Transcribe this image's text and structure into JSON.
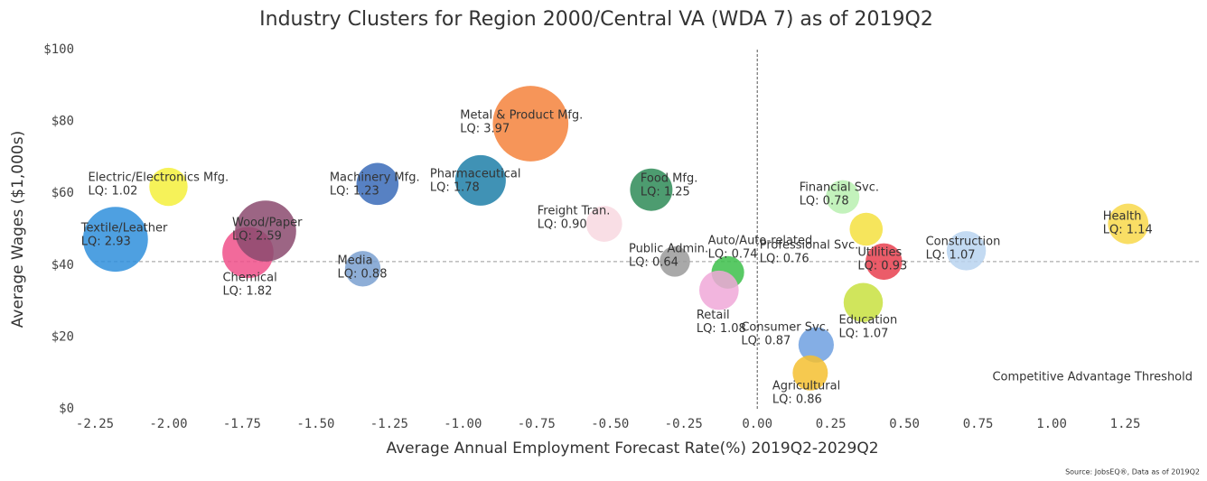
{
  "chart_data": {
    "type": "bubble",
    "title": "Industry Clusters for Region 2000/Central VA (WDA 7) as of 2019Q2",
    "x_label": "Average Annual Employment Forecast Rate(%) 2019Q2-2029Q2",
    "y_label": "Average Wages ($1,000s)",
    "annotation": "Competitive Advantage Threshold",
    "source": "Source: JobsEQ®, Data as of 2019Q2",
    "categories": [
      "Textile/Leather",
      "Electric/Electronics Mfg.",
      "Chemical",
      "Wood/Paper",
      "Media",
      "Machinery Mfg.",
      "Pharmaceutical",
      "Metal & Product Mfg.",
      "Freight Tran.",
      "Food Mfg.",
      "Public Admin.",
      "Auto/Auto-related",
      "Retail",
      "Professional Svc.",
      "Financial Svc.",
      "Utilities",
      "Construction",
      "Health",
      "Education",
      "Consumer Svc.",
      "Agricultural"
    ],
    "x": [
      -2.18,
      -2.0,
      -1.73,
      -1.67,
      -1.34,
      -1.29,
      -0.94,
      -0.77,
      -0.52,
      -0.36,
      -0.28,
      -0.1,
      -0.13,
      0.37,
      0.29,
      0.43,
      0.71,
      1.26,
      0.36,
      0.2,
      0.18
    ],
    "values": [
      47.2,
      61.8,
      43.5,
      49.5,
      39,
      62.6,
      63.6,
      79.4,
      51.5,
      61,
      41,
      38,
      33,
      50,
      59,
      41,
      44,
      51.5,
      29.6,
      17.8,
      10
    ],
    "sizes": [
      2.93,
      1.02,
      1.82,
      2.59,
      0.88,
      1.23,
      1.78,
      3.97,
      0.9,
      1.25,
      0.64,
      0.74,
      1.08,
      0.76,
      0.78,
      0.93,
      1.07,
      1.14,
      1.07,
      0.87,
      0.86
    ],
    "value_labels": [
      "LQ: 2.93",
      "LQ: 1.02",
      "LQ: 1.82",
      "LQ: 2.59",
      "LQ: 0.88",
      "LQ: 1.23",
      "LQ: 1.78",
      "LQ: 3.97",
      "LQ: 0.90",
      "LQ: 1.25",
      "LQ: 0.64",
      "LQ: 0.74",
      "LQ: 1.08",
      "LQ: 0.76",
      "LQ: 0.78",
      "LQ: 0.93",
      "LQ: 1.07",
      "LQ: 1.14",
      "LQ: 1.07",
      "LQ: 0.87",
      "LQ: 0.86"
    ],
    "colors": [
      "#2f8fdc",
      "#f5f03c",
      "#f0508a",
      "#8b4a6e",
      "#7aa0d0",
      "#3a6bb8",
      "#1f7fa8",
      "#f5823c",
      "#f8d8e0",
      "#2e8b57",
      "#9a9a9a",
      "#3cbf4a",
      "#f0a8d8",
      "#f5e040",
      "#b8f0b0",
      "#e8404f",
      "#b8d4f0",
      "#f8d84a",
      "#c8e040",
      "#6ea0e0",
      "#f5c030"
    ],
    "vline": 0,
    "hline": 41,
    "xlim": [
      -2.25,
      1.5
    ],
    "ylim": [
      0,
      100
    ],
    "xticks": [
      -2.25,
      {
        "value": -2,
        "label": "-2.00"
      },
      -1.75,
      {
        "value": -1.5,
        "label": "-1.50"
      },
      -1.25,
      {
        "value": -1,
        "label": "-1.00"
      },
      -0.75,
      {
        "value": -0.5,
        "label": "-0.50"
      },
      -0.25,
      {
        "value": 0,
        "label": "0.00"
      },
      0.25,
      {
        "value": 0.5,
        "label": "0.50"
      },
      0.75,
      {
        "value": 1,
        "label": "1.00"
      },
      1.25
    ],
    "yticks": [
      {
        "value": 0,
        "label": "$0"
      },
      {
        "value": 20,
        "label": "$20"
      },
      {
        "value": 40,
        "label": "$40"
      },
      {
        "value": 60,
        "label": "$60"
      },
      {
        "value": 80,
        "label": "$80"
      },
      {
        "value": 100,
        "label": "$100"
      }
    ]
  }
}
